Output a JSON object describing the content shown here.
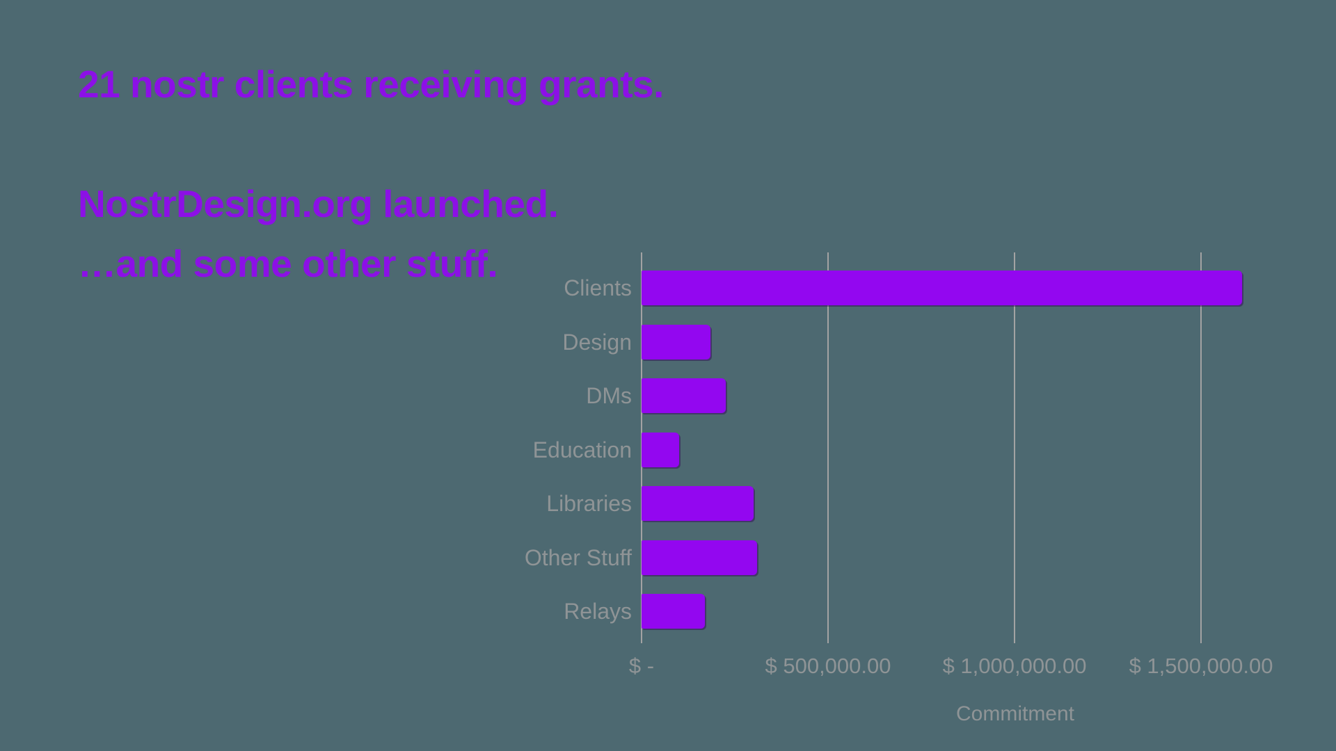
{
  "background_color": "#4D6971",
  "headings": {
    "color": "#8C10E6",
    "line1": "21 nostr clients receiving grants.",
    "line2": "NostrDesign.org launched.",
    "line3": "…and some other stuff."
  },
  "chart_data": {
    "type": "bar",
    "orientation": "horizontal",
    "title": "",
    "categories": [
      "Clients",
      "Design",
      "DMs",
      "Education",
      "Libraries",
      "Other Stuff",
      "Relays"
    ],
    "values": [
      1610000,
      185000,
      225000,
      100000,
      300000,
      310000,
      170000
    ],
    "xlabel": "Commitment",
    "ylabel": "",
    "x_tick_labels": [
      "$ -",
      "$ 500,000.00",
      "$ 1,000,000.00",
      "$ 1,500,000.00"
    ],
    "x_tick_values": [
      0,
      500000,
      1000000,
      1500000
    ],
    "xlim": [
      0,
      1675000
    ],
    "grid": true,
    "legend": false,
    "bar_color": "#9307F0",
    "gridline_color": "#A3A3A3",
    "label_color": "#8F9496"
  }
}
